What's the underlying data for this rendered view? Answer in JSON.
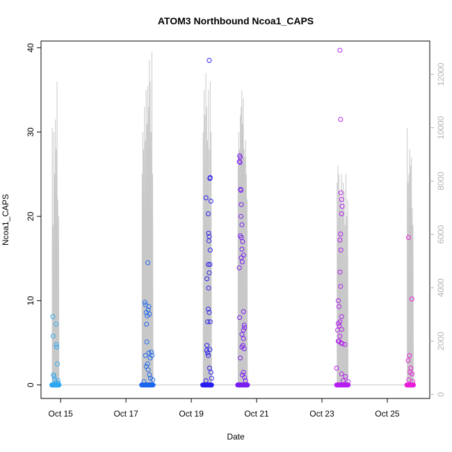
{
  "chart_data": {
    "type": "scatter",
    "title": "ATOM3 Northbound Ncoa1_CAPS",
    "xlabel": "Date",
    "ylabel": "Ncoa1_CAPS",
    "x_ticks": [
      "Oct 15",
      "Oct 17",
      "Oct 19",
      "Oct 21",
      "Oct 23",
      "Oct 25"
    ],
    "x_tick_days": [
      15,
      17,
      19,
      21,
      23,
      25
    ],
    "xlim_days": [
      14.4,
      26.3
    ],
    "ylim": [
      -1.6,
      40.8
    ],
    "y_ticks": [
      0,
      10,
      20,
      30,
      40
    ],
    "y2_ticks": [
      0,
      2000,
      4000,
      6000,
      8000,
      10000,
      12000
    ],
    "y2lim": [
      -150,
      13250
    ],
    "y2_color": "#b3b3b3",
    "grid": false,
    "legend": "none",
    "line_color": "#c8c8c8",
    "groups": [
      {
        "color": "#2ea8f0",
        "range_days": [
          14.73,
          14.95
        ],
        "points": [
          [
            14.76,
            8.1
          ],
          [
            14.77,
            5.8
          ],
          [
            14.8,
            1.0
          ],
          [
            14.78,
            1.2
          ],
          [
            14.82,
            0.6
          ],
          [
            14.85,
            0.3
          ],
          [
            14.86,
            7.2
          ],
          [
            14.87,
            4.8
          ],
          [
            14.88,
            4.5
          ],
          [
            14.9,
            2.5
          ],
          [
            14.92,
            0.5
          ],
          [
            14.93,
            0.2
          ]
        ],
        "peaks": [
          30.5,
          19,
          30,
          25,
          31.5,
          28,
          36,
          22,
          20
        ]
      },
      {
        "color": "#1c66f0",
        "range_days": [
          17.48,
          17.83
        ],
        "points": [
          [
            17.58,
            9.8
          ],
          [
            17.6,
            9.5
          ],
          [
            17.62,
            8.6
          ],
          [
            17.65,
            8.2
          ],
          [
            17.67,
            14.5
          ],
          [
            17.7,
            9.3
          ],
          [
            17.68,
            8.9
          ],
          [
            17.72,
            8.4
          ],
          [
            17.63,
            7.2
          ],
          [
            17.64,
            5.1
          ],
          [
            17.6,
            3.5
          ],
          [
            17.7,
            3.8
          ],
          [
            17.78,
            3.9
          ],
          [
            17.8,
            3.5
          ],
          [
            17.74,
            3.2
          ],
          [
            17.66,
            2.5
          ],
          [
            17.62,
            2.2
          ],
          [
            17.68,
            1.8
          ],
          [
            17.75,
            0.8
          ],
          [
            17.55,
            0.4
          ],
          [
            17.82,
            0.6
          ],
          [
            17.72,
            1.2
          ]
        ],
        "peaks": [
          25,
          30,
          28,
          33,
          29,
          35,
          31,
          35.5,
          33,
          38.5,
          36,
          30,
          39.5,
          25
        ]
      },
      {
        "color": "#2a1ef0",
        "range_days": [
          19.35,
          19.62
        ],
        "points": [
          [
            19.55,
            38.5
          ],
          [
            19.58,
            24.6
          ],
          [
            19.57,
            24.5
          ],
          [
            19.45,
            22.2
          ],
          [
            19.6,
            21.8
          ],
          [
            19.52,
            20.3
          ],
          [
            19.53,
            18.0
          ],
          [
            19.55,
            17.6
          ],
          [
            19.54,
            17.1
          ],
          [
            19.58,
            16.0
          ],
          [
            19.52,
            14.3
          ],
          [
            19.57,
            14.3
          ],
          [
            19.48,
            12.6
          ],
          [
            19.55,
            13.3
          ],
          [
            19.53,
            11.5
          ],
          [
            19.52,
            9.0
          ],
          [
            19.55,
            8.6
          ],
          [
            19.58,
            7.5
          ],
          [
            19.5,
            7.5
          ],
          [
            19.48,
            4.7
          ],
          [
            19.47,
            4.1
          ],
          [
            19.5,
            3.8
          ],
          [
            19.52,
            3.5
          ],
          [
            19.57,
            4.2
          ],
          [
            19.45,
            0.5
          ],
          [
            19.6,
            1.5
          ],
          [
            19.56,
            2.0
          ],
          [
            19.62,
            0.8
          ]
        ],
        "peaks": [
          30,
          35,
          32,
          37,
          33,
          29,
          35,
          28,
          36,
          30
        ]
      },
      {
        "color": "#7a1ef0",
        "range_days": [
          20.42,
          20.72
        ],
        "points": [
          [
            20.48,
            27.2
          ],
          [
            20.5,
            27.0
          ],
          [
            20.47,
            26.5
          ],
          [
            20.49,
            26.4
          ],
          [
            20.52,
            23.1
          ],
          [
            20.51,
            23.2
          ],
          [
            20.53,
            21.4
          ],
          [
            20.52,
            20.0
          ],
          [
            20.55,
            19.0
          ],
          [
            20.5,
            17.7
          ],
          [
            20.53,
            17.5
          ],
          [
            20.57,
            17.0
          ],
          [
            20.55,
            16.1
          ],
          [
            20.6,
            15.4
          ],
          [
            20.53,
            15.1
          ],
          [
            20.56,
            14.6
          ],
          [
            20.47,
            13.9
          ],
          [
            20.6,
            8.7
          ],
          [
            20.48,
            8.0
          ],
          [
            20.62,
            7.1
          ],
          [
            20.6,
            6.5
          ],
          [
            20.63,
            6.8
          ],
          [
            20.55,
            6.0
          ],
          [
            20.6,
            5.5
          ],
          [
            20.58,
            4.7
          ],
          [
            20.55,
            4.5
          ],
          [
            20.62,
            4.3
          ],
          [
            20.5,
            3.2
          ],
          [
            20.56,
            1.2
          ],
          [
            20.66,
            0.5
          ],
          [
            20.63,
            0.9
          ],
          [
            20.6,
            1.5
          ]
        ],
        "peaks": [
          26,
          30,
          28,
          32,
          33,
          35,
          31,
          34,
          28,
          27,
          29,
          25,
          22
        ]
      },
      {
        "color": "#b51ef0",
        "range_days": [
          23.45,
          23.8
        ],
        "points": [
          [
            23.55,
            39.7
          ],
          [
            23.57,
            31.5
          ],
          [
            23.58,
            22.8
          ],
          [
            23.6,
            22.0
          ],
          [
            23.62,
            21.2
          ],
          [
            23.6,
            20.3
          ],
          [
            23.57,
            17.9
          ],
          [
            23.55,
            17.2
          ],
          [
            23.58,
            16.0
          ],
          [
            23.55,
            13.4
          ],
          [
            23.57,
            11.7
          ],
          [
            23.5,
            10.0
          ],
          [
            23.52,
            9.3
          ],
          [
            23.6,
            8.1
          ],
          [
            23.55,
            7.5
          ],
          [
            23.5,
            7.3
          ],
          [
            23.53,
            7.0
          ],
          [
            23.48,
            6.5
          ],
          [
            23.6,
            6.6
          ],
          [
            23.55,
            5.8
          ],
          [
            23.52,
            5.2
          ],
          [
            23.58,
            5.0
          ],
          [
            23.62,
            4.9
          ],
          [
            23.7,
            4.8
          ],
          [
            23.5,
            5.2
          ],
          [
            23.45,
            2.0
          ],
          [
            23.6,
            1.3
          ],
          [
            23.65,
            0.5
          ],
          [
            23.72,
            1.0
          ],
          [
            23.8,
            0.4
          ]
        ],
        "peaks": [
          24,
          26,
          25,
          23,
          22,
          25,
          21,
          24,
          23,
          19,
          25,
          20,
          22
        ]
      },
      {
        "color": "#e81ed9",
        "range_days": [
          25.6,
          25.8
        ],
        "points": [
          [
            25.65,
            17.5
          ],
          [
            25.75,
            10.2
          ],
          [
            25.68,
            3.5
          ],
          [
            25.64,
            2.9
          ],
          [
            25.72,
            2.0
          ],
          [
            25.7,
            1.5
          ],
          [
            25.76,
            1.3
          ],
          [
            25.66,
            0.6
          ],
          [
            25.78,
            0.4
          ]
        ],
        "peaks": [
          30.5,
          24,
          25,
          28,
          26,
          27,
          21,
          19
        ]
      }
    ]
  }
}
